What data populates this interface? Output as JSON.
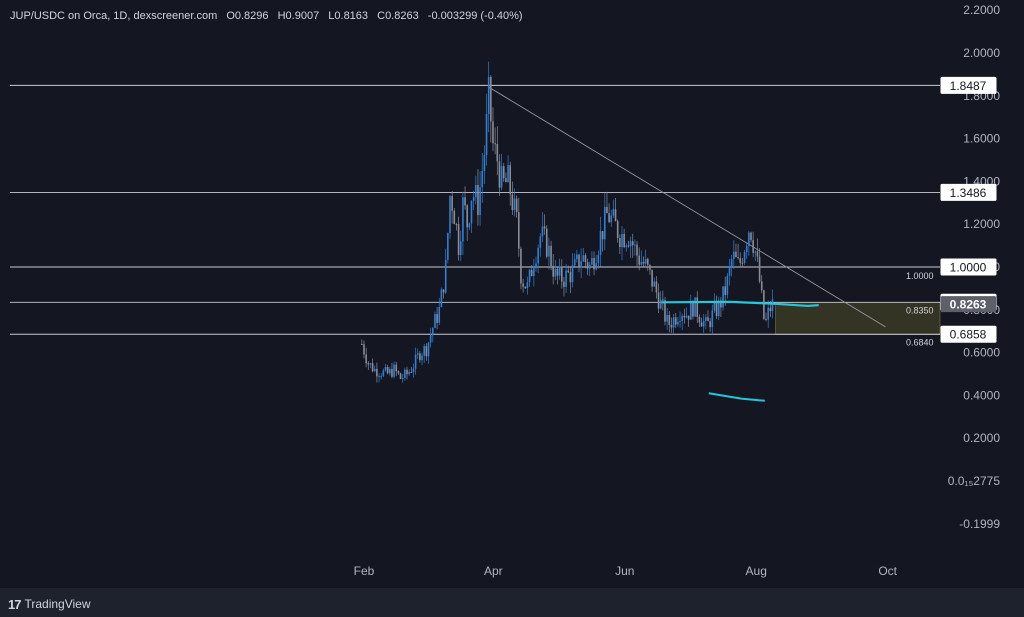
{
  "header": {
    "pair": "JUP/USDC on Orca, 1D, dexscreener.com",
    "open_key": "O",
    "open": "0.8296",
    "high_key": "H",
    "high": "0.9007",
    "low_key": "L",
    "low": "0.8163",
    "close_key": "C",
    "close": "0.8263",
    "change": "-0.003299 (-0.40%)"
  },
  "footer": {
    "brand": "TradingView",
    "logo": "17"
  },
  "colors": {
    "background": "#141722",
    "up": "#2f7fd6",
    "down": "#8a8d96",
    "teal": "#26c6da",
    "zone": "#3a3a25",
    "level": "#c8cad2",
    "price_tag": "#5d606b"
  },
  "chart_data": {
    "type": "candlestick",
    "title": "",
    "xlabel": "",
    "ylabel": "",
    "x_ticks": [
      "Feb",
      "Apr",
      "Jun",
      "Aug",
      "Oct"
    ],
    "y_ticks": [
      "2.2000",
      "2.0000",
      "1.8000",
      "1.6000",
      "1.4000",
      "1.2000",
      "1.0000",
      "0.8000",
      "0.6000",
      "0.4000",
      "0.2000",
      "0.0₁₅2775",
      "-0.1999"
    ],
    "ylim": [
      -0.1999,
      2.2
    ],
    "horizontal_levels": [
      {
        "value": 1.8487,
        "label": "1.8487"
      },
      {
        "value": 1.3486,
        "label": "1.3486"
      },
      {
        "value": 1.0,
        "label": "1.0000",
        "small_label": "1.0000"
      },
      {
        "value": 0.835,
        "label": "0.8350",
        "small_label": "0.8350"
      },
      {
        "value": 0.6858,
        "label": "0.6858"
      }
    ],
    "last_price": {
      "value": 0.8263,
      "label": "0.8263"
    },
    "zone": {
      "from": "2024-08-10",
      "to": "2024-09-30",
      "low": 0.684,
      "high": 0.835,
      "low_label": "0.6840"
    },
    "trendline": [
      {
        "date": "2024-03-30",
        "value": 1.84
      },
      {
        "date": "2024-09-30",
        "value": 0.72
      }
    ],
    "moving_average": [
      {
        "date": "2024-06-18",
        "value": 0.835
      },
      {
        "date": "2024-07-20",
        "value": 0.837
      },
      {
        "date": "2024-08-10",
        "value": 0.828
      },
      {
        "date": "2024-08-25",
        "value": 0.818
      },
      {
        "date": "2024-08-30",
        "value": 0.822
      }
    ],
    "lower_line": [
      {
        "date": "2024-07-10",
        "value": 0.41
      },
      {
        "date": "2024-07-25",
        "value": 0.385
      },
      {
        "date": "2024-08-05",
        "value": 0.375
      }
    ],
    "price_path": [
      [
        "2024-01-31",
        0.64
      ],
      [
        "2024-02-03",
        0.55
      ],
      [
        "2024-02-06",
        0.52
      ],
      [
        "2024-02-09",
        0.51
      ],
      [
        "2024-02-12",
        0.5
      ],
      [
        "2024-02-15",
        0.52
      ],
      [
        "2024-02-18",
        0.48
      ],
      [
        "2024-02-21",
        0.5
      ],
      [
        "2024-02-24",
        0.54
      ],
      [
        "2024-02-27",
        0.6
      ],
      [
        "2024-03-01",
        0.62
      ],
      [
        "2024-03-04",
        0.72
      ],
      [
        "2024-03-07",
        0.8
      ],
      [
        "2024-03-10",
        1.0
      ],
      [
        "2024-03-12",
        1.35
      ],
      [
        "2024-03-14",
        1.25
      ],
      [
        "2024-03-16",
        1.1
      ],
      [
        "2024-03-18",
        1.3
      ],
      [
        "2024-03-20",
        1.2
      ],
      [
        "2024-03-22",
        1.35
      ],
      [
        "2024-03-25",
        1.3
      ],
      [
        "2024-03-28",
        1.55
      ],
      [
        "2024-03-30",
        1.8
      ],
      [
        "2024-04-01",
        1.55
      ],
      [
        "2024-04-03",
        1.5
      ],
      [
        "2024-04-05",
        1.38
      ],
      [
        "2024-04-08",
        1.4
      ],
      [
        "2024-04-10",
        1.3
      ],
      [
        "2024-04-12",
        1.2
      ],
      [
        "2024-04-14",
        0.95
      ],
      [
        "2024-04-17",
        0.9
      ],
      [
        "2024-04-20",
        1.05
      ],
      [
        "2024-04-23",
        1.15
      ],
      [
        "2024-04-26",
        1.1
      ],
      [
        "2024-04-30",
        0.95
      ],
      [
        "2024-05-04",
        0.95
      ],
      [
        "2024-05-08",
        0.98
      ],
      [
        "2024-05-12",
        1.05
      ],
      [
        "2024-05-16",
        1.0
      ],
      [
        "2024-05-20",
        1.12
      ],
      [
        "2024-05-24",
        1.25
      ],
      [
        "2024-05-27",
        1.2
      ],
      [
        "2024-05-30",
        1.15
      ],
      [
        "2024-06-03",
        1.15
      ],
      [
        "2024-06-07",
        1.05
      ],
      [
        "2024-06-11",
        1.0
      ],
      [
        "2024-06-15",
        0.9
      ],
      [
        "2024-06-18",
        0.82
      ],
      [
        "2024-06-21",
        0.73
      ],
      [
        "2024-06-24",
        0.76
      ],
      [
        "2024-06-27",
        0.8
      ],
      [
        "2024-06-30",
        0.78
      ],
      [
        "2024-07-03",
        0.82
      ],
      [
        "2024-07-06",
        0.77
      ],
      [
        "2024-07-09",
        0.72
      ],
      [
        "2024-07-12",
        0.78
      ],
      [
        "2024-07-15",
        0.82
      ],
      [
        "2024-07-18",
        0.9
      ],
      [
        "2024-07-21",
        1.05
      ],
      [
        "2024-07-24",
        1.0
      ],
      [
        "2024-07-27",
        1.12
      ],
      [
        "2024-07-29",
        1.2
      ],
      [
        "2024-08-01",
        1.05
      ],
      [
        "2024-08-03",
        0.9
      ],
      [
        "2024-08-05",
        0.72
      ],
      [
        "2024-08-07",
        0.8
      ],
      [
        "2024-08-09",
        0.83
      ]
    ]
  }
}
